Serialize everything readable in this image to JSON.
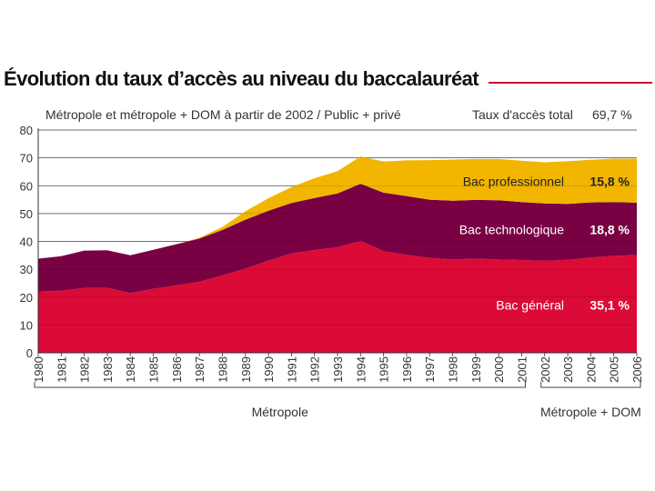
{
  "header": {
    "title": "Évolution du taux d’accès au niveau du baccalauréat",
    "subtitle": "Métropole et métropole + DOM à partir de 2002 / Public + privé",
    "total_label": "Taux d'accès total",
    "total_value": "69,7 %"
  },
  "colors": {
    "general": "#dc0a36",
    "technologique": "#780043",
    "professionnel": "#f2b600",
    "grid": "#555555",
    "accent_rule": "#c8102e"
  },
  "chart_data": {
    "type": "area",
    "stacked": true,
    "title": "Évolution du taux d’accès au niveau du baccalauréat",
    "subtitle": "Métropole et métropole + DOM à partir de 2002 / Public + privé",
    "x": [
      1980,
      1981,
      1982,
      1983,
      1984,
      1985,
      1986,
      1987,
      1988,
      1989,
      1990,
      1991,
      1992,
      1993,
      1994,
      1995,
      1996,
      1997,
      1998,
      1999,
      2000,
      2001,
      2002,
      2003,
      2004,
      2005,
      2006
    ],
    "ylim": [
      0,
      80
    ],
    "yticks": [
      0,
      10,
      20,
      30,
      40,
      50,
      60,
      70,
      80
    ],
    "grid": "horizontal",
    "series": [
      {
        "name": "Bac général",
        "value_label": "35,1 %",
        "color": "#dc0a36",
        "values": [
          22.0,
          22.3,
          23.3,
          23.3,
          21.5,
          23.0,
          24.2,
          25.5,
          27.8,
          30.3,
          33.1,
          35.7,
          36.9,
          37.9,
          40.2,
          36.5,
          35.2,
          34.1,
          33.5,
          33.8,
          33.5,
          33.3,
          33.0,
          33.4,
          34.2,
          34.8,
          35.1
        ]
      },
      {
        "name": "Bac technologique",
        "value_label": "18,8 %",
        "color": "#780043",
        "values": [
          11.8,
          12.4,
          13.4,
          13.5,
          13.5,
          14.0,
          14.8,
          15.5,
          16.3,
          17.5,
          17.9,
          18.1,
          18.7,
          19.3,
          20.5,
          21.0,
          21.1,
          20.9,
          21.1,
          21.1,
          21.3,
          20.8,
          20.6,
          20.1,
          19.8,
          19.3,
          18.8
        ]
      },
      {
        "name": "Bac professionnel",
        "value_label": "15,8 %",
        "color": "#f2b600",
        "values": [
          0,
          0,
          0,
          0,
          0,
          0,
          0,
          0.3,
          1.1,
          3.0,
          4.5,
          5.7,
          7.1,
          8.0,
          9.8,
          11.2,
          12.8,
          14.2,
          14.8,
          14.7,
          14.8,
          14.9,
          14.8,
          15.3,
          15.3,
          15.6,
          15.8
        ]
      }
    ],
    "groups": [
      {
        "label": "Métropole",
        "from": 1980,
        "to": 2001
      },
      {
        "label": "Métropole + DOM",
        "from": 2002,
        "to": 2006
      }
    ]
  }
}
